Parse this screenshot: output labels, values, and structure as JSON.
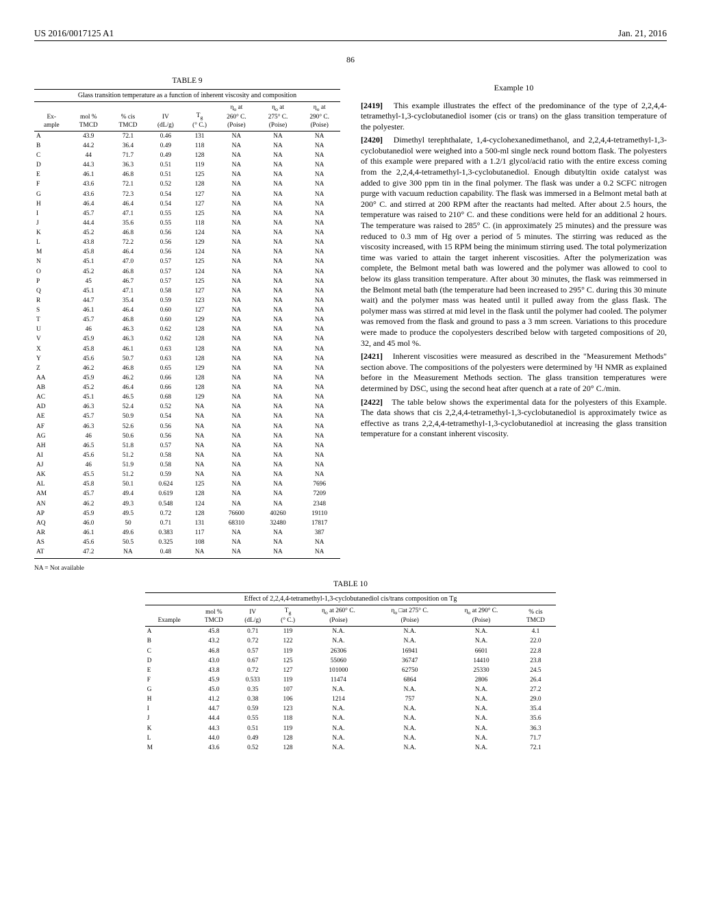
{
  "header": {
    "left": "US 2016/0017125 A1",
    "right": "Jan. 21, 2016"
  },
  "page_number": "86",
  "table9": {
    "label": "TABLE 9",
    "caption": "Glass transition temperature as a function of inherent viscosity and composition",
    "columns": [
      "Ex-\nample",
      "mol %\nTMCD",
      "% cis\nTMCD",
      "IV\n(dL/g)",
      "Tg\n(° C.)",
      "ηo at\n260° C.\n(Poise)",
      "ηo at\n275° C.\n(Poise)",
      "ηo at\n290° C.\n(Poise)"
    ],
    "rows": [
      [
        "A",
        "43.9",
        "72.1",
        "0.46",
        "131",
        "NA",
        "NA",
        "NA"
      ],
      [
        "B",
        "44.2",
        "36.4",
        "0.49",
        "118",
        "NA",
        "NA",
        "NA"
      ],
      [
        "C",
        "44",
        "71.7",
        "0.49",
        "128",
        "NA",
        "NA",
        "NA"
      ],
      [
        "D",
        "44.3",
        "36.3",
        "0.51",
        "119",
        "NA",
        "NA",
        "NA"
      ],
      [
        "E",
        "46.1",
        "46.8",
        "0.51",
        "125",
        "NA",
        "NA",
        "NA"
      ],
      [
        "F",
        "43.6",
        "72.1",
        "0.52",
        "128",
        "NA",
        "NA",
        "NA"
      ],
      [
        "G",
        "43.6",
        "72.3",
        "0.54",
        "127",
        "NA",
        "NA",
        "NA"
      ],
      [
        "H",
        "46.4",
        "46.4",
        "0.54",
        "127",
        "NA",
        "NA",
        "NA"
      ],
      [
        "I",
        "45.7",
        "47.1",
        "0.55",
        "125",
        "NA",
        "NA",
        "NA"
      ],
      [
        "J",
        "44.4",
        "35.6",
        "0.55",
        "118",
        "NA",
        "NA",
        "NA"
      ],
      [
        "K",
        "45.2",
        "46.8",
        "0.56",
        "124",
        "NA",
        "NA",
        "NA"
      ],
      [
        "L",
        "43.8",
        "72.2",
        "0.56",
        "129",
        "NA",
        "NA",
        "NA"
      ],
      [
        "M",
        "45.8",
        "46.4",
        "0.56",
        "124",
        "NA",
        "NA",
        "NA"
      ],
      [
        "N",
        "45.1",
        "47.0",
        "0.57",
        "125",
        "NA",
        "NA",
        "NA"
      ],
      [
        "O",
        "45.2",
        "46.8",
        "0.57",
        "124",
        "NA",
        "NA",
        "NA"
      ],
      [
        "P",
        "45",
        "46.7",
        "0.57",
        "125",
        "NA",
        "NA",
        "NA"
      ],
      [
        "Q",
        "45.1",
        "47.1",
        "0.58",
        "127",
        "NA",
        "NA",
        "NA"
      ],
      [
        "R",
        "44.7",
        "35.4",
        "0.59",
        "123",
        "NA",
        "NA",
        "NA"
      ],
      [
        "S",
        "46.1",
        "46.4",
        "0.60",
        "127",
        "NA",
        "NA",
        "NA"
      ],
      [
        "T",
        "45.7",
        "46.8",
        "0.60",
        "129",
        "NA",
        "NA",
        "NA"
      ],
      [
        "U",
        "46",
        "46.3",
        "0.62",
        "128",
        "NA",
        "NA",
        "NA"
      ],
      [
        "V",
        "45.9",
        "46.3",
        "0.62",
        "128",
        "NA",
        "NA",
        "NA"
      ],
      [
        "X",
        "45.8",
        "46.1",
        "0.63",
        "128",
        "NA",
        "NA",
        "NA"
      ],
      [
        "Y",
        "45.6",
        "50.7",
        "0.63",
        "128",
        "NA",
        "NA",
        "NA"
      ],
      [
        "Z",
        "46.2",
        "46.8",
        "0.65",
        "129",
        "NA",
        "NA",
        "NA"
      ],
      [
        "AA",
        "45.9",
        "46.2",
        "0.66",
        "128",
        "NA",
        "NA",
        "NA"
      ],
      [
        "AB",
        "45.2",
        "46.4",
        "0.66",
        "128",
        "NA",
        "NA",
        "NA"
      ],
      [
        "AC",
        "45.1",
        "46.5",
        "0.68",
        "129",
        "NA",
        "NA",
        "NA"
      ],
      [
        "AD",
        "46.3",
        "52.4",
        "0.52",
        "NA",
        "NA",
        "NA",
        "NA"
      ],
      [
        "AE",
        "45.7",
        "50.9",
        "0.54",
        "NA",
        "NA",
        "NA",
        "NA"
      ],
      [
        "AF",
        "46.3",
        "52.6",
        "0.56",
        "NA",
        "NA",
        "NA",
        "NA"
      ],
      [
        "AG",
        "46",
        "50.6",
        "0.56",
        "NA",
        "NA",
        "NA",
        "NA"
      ],
      [
        "AH",
        "46.5",
        "51.8",
        "0.57",
        "NA",
        "NA",
        "NA",
        "NA"
      ],
      [
        "AI",
        "45.6",
        "51.2",
        "0.58",
        "NA",
        "NA",
        "NA",
        "NA"
      ],
      [
        "AJ",
        "46",
        "51.9",
        "0.58",
        "NA",
        "NA",
        "NA",
        "NA"
      ],
      [
        "AK",
        "45.5",
        "51.2",
        "0.59",
        "NA",
        "NA",
        "NA",
        "NA"
      ],
      [
        "AL",
        "45.8",
        "50.1",
        "0.624",
        "125",
        "NA",
        "NA",
        "7696"
      ],
      [
        "AM",
        "45.7",
        "49.4",
        "0.619",
        "128",
        "NA",
        "NA",
        "7209"
      ],
      [
        "AN",
        "46.2",
        "49.3",
        "0.548",
        "124",
        "NA",
        "NA",
        "2348"
      ],
      [
        "AP",
        "45.9",
        "49.5",
        "0.72",
        "128",
        "76600",
        "40260",
        "19110"
      ],
      [
        "AQ",
        "46.0",
        "50",
        "0.71",
        "131",
        "68310",
        "32480",
        "17817"
      ],
      [
        "AR",
        "46.1",
        "49.6",
        "0.383",
        "117",
        "NA",
        "NA",
        "387"
      ],
      [
        "AS",
        "45.6",
        "50.5",
        "0.325",
        "108",
        "NA",
        "NA",
        "NA"
      ],
      [
        "AT",
        "47.2",
        "NA",
        "0.48",
        "NA",
        "NA",
        "NA",
        "NA"
      ]
    ],
    "footnote": "NA = Not available"
  },
  "example10": {
    "heading": "Example 10",
    "p2419_num": "[2419]",
    "p2419": "This example illustrates the effect of the predominance of the type of 2,2,4,4-tetramethyl-1,3-cyclobutanediol isomer (cis or trans) on the glass transition temperature of the polyester.",
    "p2420_num": "[2420]",
    "p2420": "Dimethyl terephthalate, 1,4-cyclohexanedimethanol, and 2,2,4,4-tetramethyl-1,3-cyclobutanediol were weighed into a 500-ml single neck round bottom flask. The polyesters of this example were prepared with a 1.2/1 glycol/acid ratio with the entire excess coming from the 2,2,4,4-tetramethyl-1,3-cyclobutanediol. Enough dibutyltin oxide catalyst was added to give 300 ppm tin in the final polymer. The flask was under a 0.2 SCFC nitrogen purge with vacuum reduction capability. The flask was immersed in a Belmont metal bath at 200° C. and stirred at 200 RPM after the reactants had melted. After about 2.5 hours, the temperature was raised to 210° C. and these conditions were held for an additional 2 hours. The temperature was raised to 285° C. (in approximately 25 minutes) and the pressure was reduced to 0.3 mm of Hg over a period of 5 minutes. The stirring was reduced as the viscosity increased, with 15 RPM being the minimum stirring used. The total polymerization time was varied to attain the target inherent viscosities. After the polymerization was complete, the Belmont metal bath was lowered and the polymer was allowed to cool to below its glass transition temperature. After about 30 minutes, the flask was reimmersed in the Belmont metal bath (the temperature had been increased to 295° C. during this 30 minute wait) and the polymer mass was heated until it pulled away from the glass flask. The polymer mass was stirred at mid level in the flask until the polymer had cooled. The polymer was removed from the flask and ground to pass a 3 mm screen. Variations to this procedure were made to produce the copolyesters described below with targeted compositions of 20, 32, and 45 mol %.",
    "p2421_num": "[2421]",
    "p2421": "Inherent viscosities were measured as described in the \"Measurement Methods\" section above. The compositions of the polyesters were determined by ¹H NMR as explained before in the Measurement Methods section. The glass transition temperatures were determined by DSC, using the second heat after quench at a rate of 20° C./min.",
    "p2422_num": "[2422]",
    "p2422": "The table below shows the experimental data for the polyesters of this Example. The data shows that cis 2,2,4,4-tetramethyl-1,3-cyclobutanediol is approximately twice as effective as trans 2,2,4,4-tetramethyl-1,3-cyclobutanediol at increasing the glass transition temperature for a constant inherent viscosity."
  },
  "table10": {
    "label": "TABLE 10",
    "caption": "Effect of 2,2,4,4-tetramethyl-1,3-cyclobutanediol cis/trans composition on Tg",
    "columns": [
      "Example",
      "mol %\nTMCD",
      "IV\n(dL/g)",
      "Tg\n(° C.)",
      "ηo at 260° C.\n(Poise)",
      "ηo □at 275° C.\n(Poise)",
      "ηo at 290° C.\n(Poise)",
      "% cis\nTMCD"
    ],
    "rows": [
      [
        "A",
        "45.8",
        "0.71",
        "119",
        "N.A.",
        "N.A.",
        "N.A.",
        "4.1"
      ],
      [
        "B",
        "43.2",
        "0.72",
        "122",
        "N.A.",
        "N.A.",
        "N.A.",
        "22.0"
      ],
      [
        "C",
        "46.8",
        "0.57",
        "119",
        "26306",
        "16941",
        "6601",
        "22.8"
      ],
      [
        "D",
        "43.0",
        "0.67",
        "125",
        "55060",
        "36747",
        "14410",
        "23.8"
      ],
      [
        "E",
        "43.8",
        "0.72",
        "127",
        "101000",
        "62750",
        "25330",
        "24.5"
      ],
      [
        "F",
        "45.9",
        "0.533",
        "119",
        "11474",
        "6864",
        "2806",
        "26.4"
      ],
      [
        "G",
        "45.0",
        "0.35",
        "107",
        "N.A.",
        "N.A.",
        "N.A.",
        "27.2"
      ],
      [
        "H",
        "41.2",
        "0.38",
        "106",
        "1214",
        "757",
        "N.A.",
        "29.0"
      ],
      [
        "I",
        "44.7",
        "0.59",
        "123",
        "N.A.",
        "N.A.",
        "N.A.",
        "35.4"
      ],
      [
        "J",
        "44.4",
        "0.55",
        "118",
        "N.A.",
        "N.A.",
        "N.A.",
        "35.6"
      ],
      [
        "K",
        "44.3",
        "0.51",
        "119",
        "N.A.",
        "N.A.",
        "N.A.",
        "36.3"
      ],
      [
        "L",
        "44.0",
        "0.49",
        "128",
        "N.A.",
        "N.A.",
        "N.A.",
        "71.7"
      ],
      [
        "M",
        "43.6",
        "0.52",
        "128",
        "N.A.",
        "N.A.",
        "N.A.",
        "72.1"
      ]
    ]
  }
}
